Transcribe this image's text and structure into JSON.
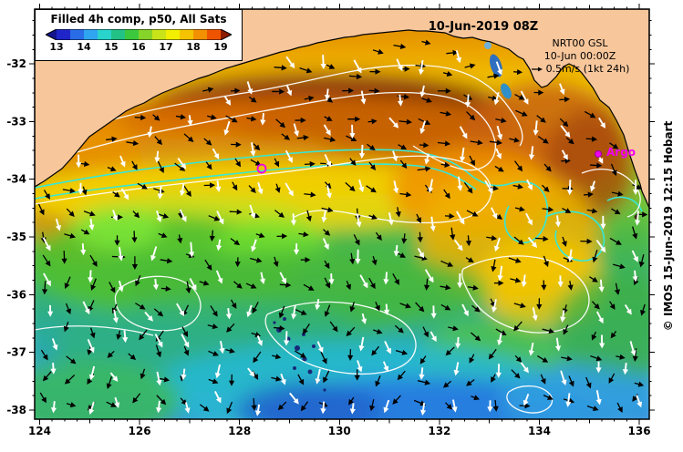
{
  "figure": {
    "datetime_label": "10-Jun-2019 08Z",
    "credit": "© IMOS 15-Jun-2019 12:15 Hobart"
  },
  "legend": {
    "title": "Filled 4h comp, p50, All Sats",
    "tick_labels": [
      "13",
      "14",
      "15",
      "16",
      "17",
      "18",
      "19"
    ],
    "under_color": "#14148c",
    "over_color": "#8c1c00",
    "segment_colors": [
      "#1f25c8",
      "#2a6ce8",
      "#2fa4f0",
      "#28d4cc",
      "#22c287",
      "#3cc83c",
      "#86d32a",
      "#c8e418",
      "#f2ee00",
      "#f4c400",
      "#f29000",
      "#ee5400"
    ]
  },
  "model_info": {
    "line1": "NRT00 GSL",
    "line2": "10-Jun 00:00Z",
    "line3": "0.5m/s (1kt 24h)"
  },
  "argo": {
    "label": "Argo",
    "color": "#f000f0"
  },
  "axes": {
    "x_tick_labels": [
      "124",
      "126",
      "128",
      "130",
      "132",
      "134",
      "136"
    ],
    "y_tick_labels": [
      "-32",
      "-33",
      "-34",
      "-35",
      "-36",
      "-37",
      "-38"
    ]
  },
  "map_colors": {
    "land": "#f7c69b",
    "contour_white": "#ffffff",
    "contour_cyan": "#35e8d8",
    "arrow_black": "#000000",
    "arrow_white": "#ffffff",
    "marker_magenta": "#f000f0"
  },
  "chart_data": {
    "type": "heatmap",
    "title": "Filled 4h comp, p50, All Sats",
    "x_ticks": [
      124,
      126,
      128,
      130,
      132,
      134,
      136
    ],
    "y_ticks": [
      -32,
      -33,
      -34,
      -35,
      -36,
      -37,
      -38
    ],
    "colorbar": {
      "min": 13,
      "max": 19,
      "tick_step": 1
    },
    "overlays": [
      "black current vectors",
      "white current vectors",
      "white contour lines",
      "cyan contour lines",
      "argo float marker",
      "magenta eddy marker",
      "land coastline"
    ]
  }
}
